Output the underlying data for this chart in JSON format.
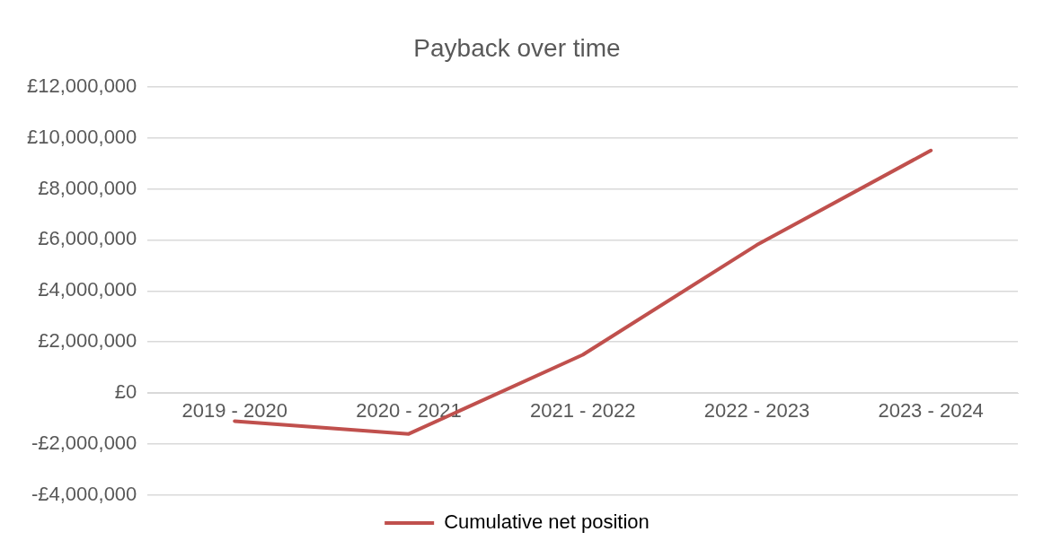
{
  "chart_data": {
    "type": "line",
    "title": "Payback over time",
    "categories": [
      "2019 - 2020",
      "2020 - 2021",
      "2021 - 2022",
      "2022 - 2023",
      "2023 - 2024"
    ],
    "series": [
      {
        "name": "Cumulative net position",
        "color": "#c0504d",
        "values": [
          -1100000,
          -1600000,
          1500000,
          5800000,
          9500000
        ]
      }
    ],
    "ylim": [
      -4000000,
      12000000
    ],
    "yticks": [
      {
        "value": -4000000,
        "label": "-£4,000,000"
      },
      {
        "value": -2000000,
        "label": "-£2,000,000"
      },
      {
        "value": 0,
        "label": "£0"
      },
      {
        "value": 2000000,
        "label": "£2,000,000"
      },
      {
        "value": 4000000,
        "label": "£4,000,000"
      },
      {
        "value": 6000000,
        "label": "£6,000,000"
      },
      {
        "value": 8000000,
        "label": "£8,000,000"
      },
      {
        "value": 10000000,
        "label": "£10,000,000"
      },
      {
        "value": 12000000,
        "label": "£12,000,000"
      }
    ],
    "grid": "y",
    "legend": "bottom",
    "marker": "none",
    "line_style": "solid"
  }
}
